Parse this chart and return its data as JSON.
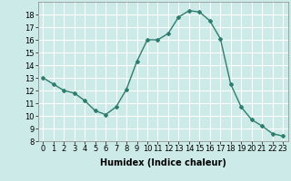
{
  "x": [
    0,
    1,
    2,
    3,
    4,
    5,
    6,
    7,
    8,
    9,
    10,
    11,
    12,
    13,
    14,
    15,
    16,
    17,
    18,
    19,
    20,
    21,
    22,
    23
  ],
  "y": [
    13,
    12.5,
    12,
    11.8,
    11.2,
    10.4,
    10.1,
    10.7,
    12.1,
    14.3,
    16.0,
    16.0,
    16.5,
    17.8,
    18.3,
    18.2,
    17.5,
    16.1,
    12.5,
    10.7,
    9.7,
    9.2,
    8.6,
    8.4
  ],
  "line_color": "#2e7d6e",
  "marker": "D",
  "marker_size": 2,
  "bg_color": "#cceae7",
  "grid_color": "#ffffff",
  "xlabel": "Humidex (Indice chaleur)",
  "xlabel_fontsize": 7,
  "tick_fontsize": 6,
  "xlim": [
    -0.5,
    23.5
  ],
  "ylim": [
    8,
    19
  ],
  "yticks": [
    8,
    9,
    10,
    11,
    12,
    13,
    14,
    15,
    16,
    17,
    18
  ],
  "xticks": [
    0,
    1,
    2,
    3,
    4,
    5,
    6,
    7,
    8,
    9,
    10,
    11,
    12,
    13,
    14,
    15,
    16,
    17,
    18,
    19,
    20,
    21,
    22,
    23
  ]
}
